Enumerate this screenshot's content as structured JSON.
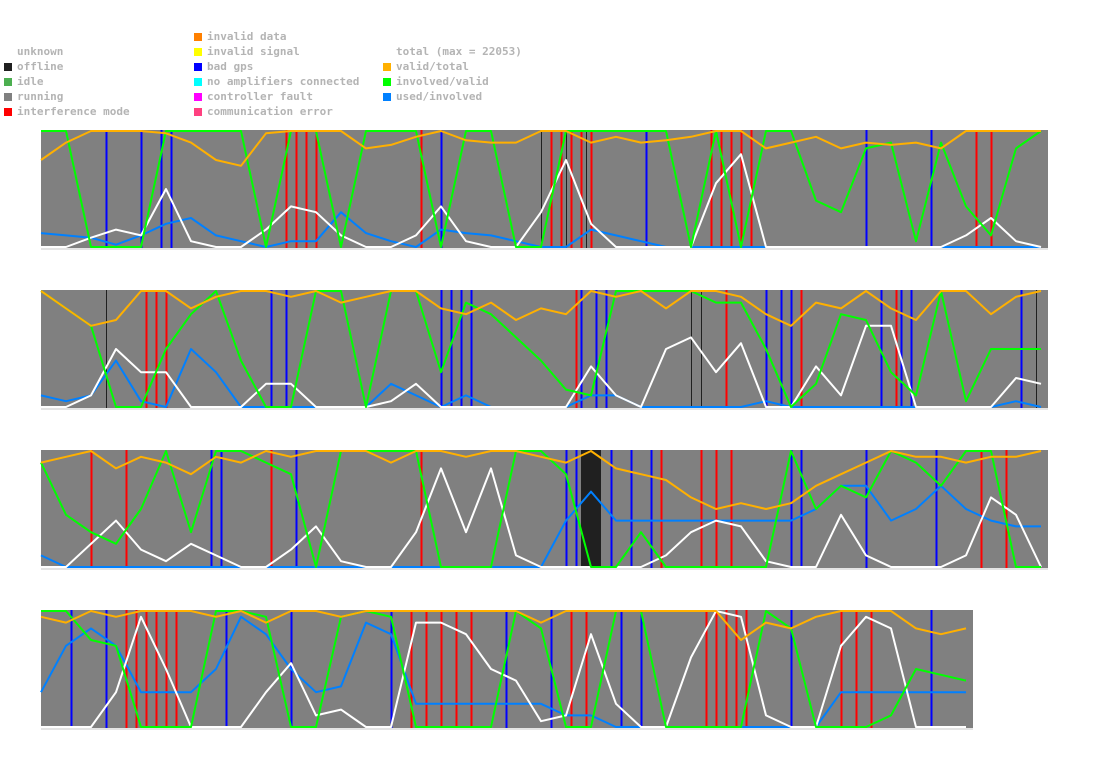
{
  "legend": {
    "states": [
      {
        "label": "unknown",
        "color": ""
      },
      {
        "label": "offline",
        "color": "#202020"
      },
      {
        "label": "idle",
        "color": "#4caf50"
      },
      {
        "label": "running",
        "color": "#808080"
      },
      {
        "label": "interference mode",
        "color": "#ff0000"
      }
    ],
    "errors": [
      {
        "label": "invalid data",
        "color": "#ff8000"
      },
      {
        "label": "invalid signal",
        "color": "#ffff00"
      },
      {
        "label": "bad gps",
        "color": "#0000ff"
      },
      {
        "label": "no amplifiers connected",
        "color": "#00ffff"
      },
      {
        "label": "controller fault",
        "color": "#ff00ff"
      },
      {
        "label": "communication error",
        "color": "#ff4080"
      }
    ],
    "ratios": [
      {
        "label": "total (max = 22053)",
        "color": "#ffffff"
      },
      {
        "label": "valid/total",
        "color": "#ffb000"
      },
      {
        "label": "involved/valid",
        "color": "#00ff00"
      },
      {
        "label": "used/involved",
        "color": "#0080ff"
      }
    ]
  },
  "chart_data": {
    "type": "line",
    "y_range": [
      0,
      1
    ],
    "total_max": 22053,
    "background_state": "running",
    "rows": [
      {
        "samples": 41,
        "series": {
          "total": [
            0,
            0,
            0.08,
            0.15,
            0.1,
            0.5,
            0.05,
            0,
            0,
            0.15,
            0.35,
            0.3,
            0.1,
            0,
            0,
            0.1,
            0.35,
            0.05,
            0,
            0,
            0.3,
            0.75,
            0.2,
            0,
            0,
            0,
            0,
            0.55,
            0.8,
            0,
            0,
            0,
            0,
            0,
            0,
            0,
            0,
            0.1,
            0.25,
            0.05,
            0
          ],
          "valid/total": [
            0.75,
            0.9,
            1,
            1,
            1,
            0.98,
            0.9,
            0.75,
            0.7,
            0.98,
            1,
            1,
            1,
            0.85,
            0.88,
            0.95,
            1,
            0.92,
            0.9,
            0.9,
            1,
            1,
            0.9,
            0.95,
            0.9,
            0.92,
            0.95,
            1,
            1,
            0.85,
            0.9,
            0.95,
            0.85,
            0.9,
            0.88,
            0.9,
            0.85,
            1,
            1,
            1,
            1
          ],
          "involved/valid": [
            1,
            1,
            0,
            0,
            0,
            1,
            1,
            1,
            1,
            0,
            1,
            1,
            0,
            1,
            1,
            1,
            0,
            1,
            1,
            0,
            0,
            1,
            1,
            1,
            1,
            1,
            0,
            1,
            0,
            1,
            1,
            0.4,
            0.3,
            0.85,
            0.9,
            0.05,
            0.9,
            0.35,
            0.1,
            0.85,
            1
          ],
          "used/involved": [
            0.12,
            0.1,
            0.08,
            0.02,
            0.1,
            0.2,
            0.25,
            0.1,
            0.05,
            0,
            0.05,
            0.05,
            0.3,
            0.12,
            0.05,
            0,
            0.15,
            0.12,
            0.1,
            0.05,
            0,
            0,
            0.15,
            0.1,
            0.05,
            0,
            0,
            0,
            0,
            0,
            0,
            0,
            0,
            0,
            0,
            0,
            0,
            0,
            0,
            0,
            0
          ]
        },
        "events": {
          "interference mode": [
            49,
            51,
            53,
            55,
            76,
            102,
            104,
            106,
            108,
            110,
            134,
            136,
            138,
            140,
            142,
            187,
            190
          ],
          "bad gps": [
            13,
            20,
            24,
            26,
            80,
            121,
            165,
            178
          ],
          "offline": [
            100,
            105,
            109
          ]
        }
      },
      {
        "samples": 41,
        "series": {
          "total": [
            0,
            0,
            0.1,
            0.5,
            0.3,
            0.3,
            0,
            0,
            0,
            0.2,
            0.2,
            0,
            0,
            0,
            0.05,
            0.2,
            0,
            0,
            0,
            0,
            0,
            0,
            0.35,
            0.1,
            0,
            0.5,
            0.6,
            0.3,
            0.55,
            0,
            0,
            0.35,
            0.1,
            0.7,
            0.7,
            0,
            0,
            0,
            0,
            0.25,
            0.2
          ],
          "valid/total": [
            1,
            0.85,
            0.7,
            0.75,
            1,
            1,
            0.85,
            0.95,
            1,
            1,
            0.95,
            1,
            0.9,
            0.95,
            1,
            1,
            0.85,
            0.8,
            0.9,
            0.75,
            0.85,
            0.8,
            1,
            0.95,
            1,
            0.85,
            1,
            1,
            0.95,
            0.8,
            0.7,
            0.9,
            0.85,
            1,
            0.85,
            0.75,
            1,
            1,
            0.8,
            0.95,
            1
          ],
          "involved/valid": [
            1,
            0.85,
            0.7,
            0,
            0,
            0.5,
            0.8,
            1,
            0.4,
            0,
            0,
            1,
            1,
            0,
            1,
            1,
            0.3,
            0.9,
            0.8,
            0.6,
            0.4,
            0.15,
            0.1,
            1,
            1,
            1,
            1,
            0.9,
            0.9,
            0.5,
            0,
            0.2,
            0.8,
            0.75,
            0.3,
            0.1,
            1,
            0.05,
            0.5,
            0.5,
            0.5
          ],
          "used/involved": [
            0.1,
            0.05,
            0.1,
            0.4,
            0.05,
            0,
            0.5,
            0.3,
            0,
            0,
            0,
            0,
            0,
            0,
            0.2,
            0.1,
            0,
            0.1,
            0,
            0,
            0,
            0,
            0.1,
            0.1,
            0,
            0,
            0,
            0,
            0,
            0.05,
            0,
            0,
            0,
            0,
            0,
            0,
            0,
            0,
            0,
            0.05,
            0
          ]
        },
        "events": {
          "interference mode": [
            21,
            23,
            25,
            107,
            137,
            150,
            152,
            171
          ],
          "bad gps": [
            46,
            49,
            80,
            82,
            84,
            86,
            108,
            111,
            113,
            145,
            148,
            150,
            168,
            172,
            174,
            196
          ],
          "offline": [
            13,
            80,
            130,
            132,
            199
          ]
        }
      },
      {
        "samples": 41,
        "series": {
          "total": [
            0,
            0,
            0.2,
            0.4,
            0.15,
            0.05,
            0.2,
            0.1,
            0,
            0,
            0.15,
            0.35,
            0.05,
            0,
            0,
            0.3,
            0.85,
            0.3,
            0.85,
            0.1,
            0,
            0,
            0,
            0,
            0,
            0.1,
            0.3,
            0.4,
            0.35,
            0.05,
            0,
            0,
            0.45,
            0.1,
            0,
            0,
            0,
            0.1,
            0.6,
            0.45,
            0
          ],
          "valid/total": [
            0.9,
            0.95,
            1,
            0.85,
            0.95,
            0.9,
            0.8,
            0.95,
            0.9,
            1,
            0.95,
            1,
            1,
            1,
            0.9,
            1,
            1,
            0.95,
            1,
            1,
            0.95,
            0.9,
            1,
            0.85,
            0.8,
            0.75,
            0.6,
            0.5,
            0.55,
            0.5,
            0.55,
            0.7,
            0.8,
            0.9,
            1,
            0.95,
            0.95,
            0.9,
            0.95,
            0.95,
            1
          ],
          "involved/valid": [
            0.9,
            0.45,
            0.3,
            0.2,
            0.5,
            1,
            0.3,
            1,
            1,
            0.9,
            0.8,
            0,
            1,
            1,
            1,
            1,
            0,
            0,
            0,
            1,
            1,
            0.8,
            0,
            0,
            0.3,
            0,
            0,
            0,
            0,
            0,
            1,
            0.5,
            0.7,
            0.6,
            1,
            0.9,
            0.7,
            1,
            1,
            0,
            0
          ],
          "used/involved": [
            0.1,
            0,
            0,
            0,
            0,
            0,
            0,
            0,
            0,
            0,
            0,
            0,
            0,
            0,
            0,
            0,
            0,
            0,
            0,
            0,
            0,
            0.4,
            0.65,
            0.4,
            0.4,
            0.4,
            0.4,
            0.4,
            0.4,
            0.4,
            0.4,
            0.5,
            0.7,
            0.7,
            0.4,
            0.5,
            0.7,
            0.5,
            0.4,
            0.35,
            0.35
          ]
        },
        "events": {
          "interference mode": [
            10,
            17,
            46,
            76,
            124,
            132,
            135,
            138,
            188,
            193
          ],
          "bad gps": [
            34,
            36,
            51,
            105,
            107,
            114,
            118,
            122,
            150,
            152,
            165,
            179
          ],
          "offline_block": [
            108,
            112
          ]
        }
      },
      {
        "samples": 38,
        "series": {
          "total": [
            0,
            0,
            0,
            0.3,
            0.95,
            0.5,
            0,
            0,
            0,
            0.3,
            0.55,
            0.1,
            0.15,
            0,
            0,
            0.9,
            0.9,
            0.8,
            0.5,
            0.4,
            0.05,
            0.1,
            0.8,
            0.2,
            0,
            0,
            0.6,
            1,
            0.95,
            0.1,
            0,
            0,
            0.7,
            0.95,
            0.85,
            0,
            0,
            0
          ],
          "valid/total": [
            0.95,
            0.9,
            1,
            0.95,
            1,
            1,
            1,
            0.95,
            1,
            0.9,
            1,
            1,
            0.95,
            1,
            1,
            1,
            1,
            1,
            1,
            1,
            0.9,
            1,
            1,
            1,
            1,
            1,
            1,
            1,
            0.75,
            0.9,
            0.85,
            0.95,
            1,
            1,
            1,
            0.85,
            0.8,
            0.85
          ],
          "involved/valid": [
            1,
            1,
            0.75,
            0.7,
            0,
            0,
            0,
            1,
            1,
            0.95,
            0,
            0,
            0.95,
            1,
            0.95,
            0,
            0,
            0,
            0,
            1,
            0.85,
            0,
            0,
            1,
            1,
            0,
            0,
            0,
            0,
            1,
            0.85,
            0,
            0,
            0,
            0.1,
            0.5,
            0.45,
            0.4
          ],
          "used/involved": [
            0.3,
            0.7,
            0.85,
            0.7,
            0.3,
            0.3,
            0.3,
            0.5,
            0.95,
            0.8,
            0.5,
            0.3,
            0.35,
            0.9,
            0.8,
            0.2,
            0.2,
            0.2,
            0.2,
            0.2,
            0.2,
            0.1,
            0.1,
            0,
            0,
            0,
            0,
            0,
            0,
            0,
            0,
            0,
            0.3,
            0.3,
            0.3,
            0.3,
            0.3,
            0.3
          ]
        },
        "events": {
          "interference mode": [
            17,
            19,
            21,
            23,
            25,
            27,
            74,
            77,
            80,
            83,
            86,
            106,
            109,
            133,
            135,
            137,
            139,
            141,
            160,
            163,
            166
          ],
          "bad gps": [
            6,
            13,
            37,
            50,
            70,
            93,
            102,
            116,
            120,
            150,
            178
          ],
          "offline": []
        }
      }
    ]
  }
}
